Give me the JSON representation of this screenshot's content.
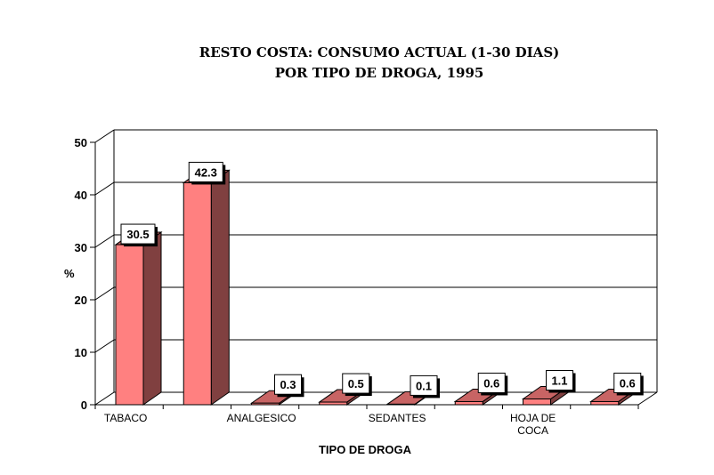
{
  "chart_data": {
    "type": "bar",
    "title": "RESTO COSTA: CONSUMO ACTUAL (1-30 DIAS)",
    "subtitle": "POR TIPO DE DROGA, 1995",
    "xlabel": "TIPO DE DROGA",
    "ylabel": "%",
    "ylim": [
      0,
      50
    ],
    "yticks": [
      "0",
      "10",
      "20",
      "30",
      "40",
      "50"
    ],
    "categories": [
      "TABACO",
      "",
      "ANALGESICO",
      "",
      "SEDANTES",
      "",
      "HOJA DE COCA",
      ""
    ],
    "values": [
      30.5,
      42.3,
      0.3,
      0.5,
      0.1,
      0.6,
      1.1,
      0.6
    ],
    "value_labels": [
      "30.5",
      "42.3",
      "0.3",
      "0.5",
      "0.1",
      "0.6",
      "1.1",
      "0.6"
    ],
    "grid": true,
    "colors": {
      "bar_front": "#ff8080",
      "bar_side": "#804040",
      "bar_top": "#c86464"
    }
  }
}
